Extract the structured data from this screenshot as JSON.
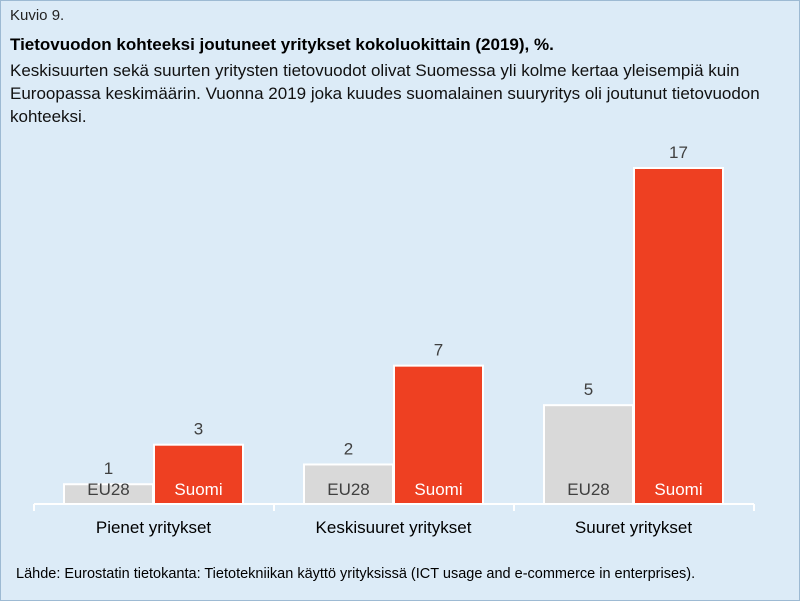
{
  "figure_label": "Kuvio 9.",
  "source_text": "Lähde: Eurostatin tietokanta: Tietotekniikan käyttö yrityksissä (ICT usage and e-commerce in enterprises).",
  "chart_data": {
    "type": "bar",
    "title": "Tietovuodon kohteeksi joutuneet yritykset kokoluokittain (2019), %.",
    "subtitle": "Keskisuurten sekä suurten yritysten tietovuodot olivat Suomessa yli kolme kertaa yleisempiä kuin Euroopassa keskimäärin. Vuonna 2019 joka kuudes suomalainen suuryritys oli joutunut tietovuodon kohteeksi.",
    "categories": [
      "Pienet yritykset",
      "Keskisuuret yritykset",
      "Suuret yritykset"
    ],
    "series": [
      {
        "name": "EU28",
        "values": [
          1,
          2,
          5
        ],
        "color": "#d9d9d9"
      },
      {
        "name": "Suomi",
        "values": [
          3,
          7,
          17
        ],
        "color": "#ee4022"
      }
    ],
    "ylim": [
      0,
      17
    ],
    "grid": false,
    "legend": "in-bar labels"
  }
}
